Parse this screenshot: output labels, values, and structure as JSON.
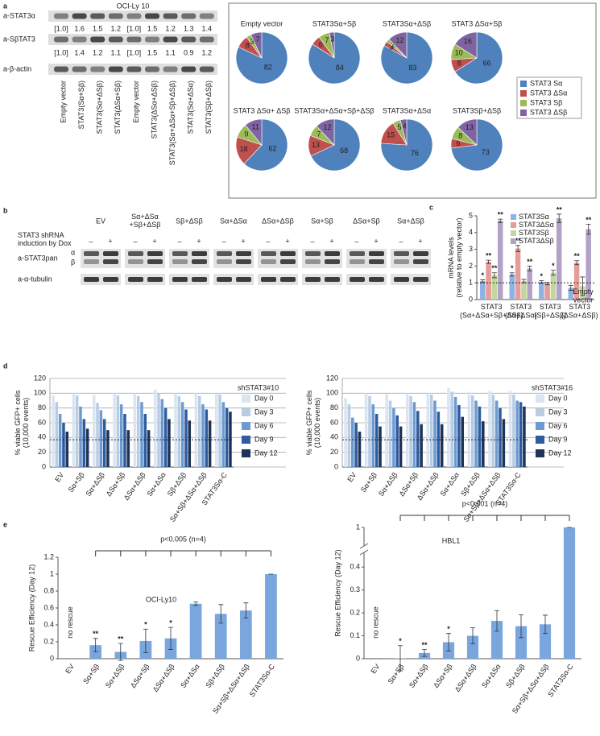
{
  "panel_labels": [
    "a",
    "b",
    "c",
    "d",
    "e"
  ],
  "blot_a": {
    "title": "OCI-Ly 10",
    "rows": [
      "a-STAT3α",
      "a-SβTAT3",
      "a-β-actin"
    ],
    "quant": [
      [
        "[1.0]",
        "1.6",
        "1.5",
        "1.2",
        "[1.0]",
        "1.5",
        "1.2",
        "1.3",
        "1.4"
      ],
      [
        "[1.0]",
        "1.4",
        "1.2",
        "1.1",
        "[1.0]",
        "1.5",
        "1.1",
        "0.9",
        "1.2"
      ]
    ],
    "lanes": [
      "Empty  vector",
      "STAT3(Sα+Sβ)",
      "STAT3(Sα+ΔSβ)",
      "STAT3(ΔSα+Sβ)",
      "Empty  vector",
      "STAT3(ΔSα+ΔSβ)",
      "STAT3(Sα+ΔSα+Sβ+ΔSβ)",
      "STAT3(Sα+ΔSα)",
      "STAT3(Sβ+ΔSβ)"
    ]
  },
  "blot_b": {
    "condition": "STAT3 shRNA\ninduction by Dox",
    "groups": [
      "EV",
      "Sα+ΔSα\n+Sβ+ΔSβ",
      "Sβ+ΔSβ",
      "Sα+ΔSα",
      "ΔSα+ΔSβ",
      "Sα+Sβ",
      "ΔSα+Sβ",
      "Sα+ΔSβ"
    ],
    "dox": [
      "–",
      "+"
    ],
    "rows": [
      "a-STAT3pan",
      "α",
      "β",
      "a-α-tubulin"
    ]
  },
  "chart_data": [
    {
      "type": "pie",
      "categories": [
        "STAT3 Sα",
        "STAT3 ΔSα",
        "STAT3 Sβ",
        "STAT3 ΔSβ"
      ],
      "colors": [
        "#4f81bd",
        "#c0504d",
        "#9bbb59",
        "#8064a2"
      ],
      "pies": [
        {
          "title": "Empty vector",
          "values": [
            82,
            8,
            3,
            7
          ]
        },
        {
          "title": "STAT3Sα+Sβ",
          "values": [
            84,
            6,
            7,
            3
          ]
        },
        {
          "title": "STAT3Sα+ΔSβ",
          "values": [
            83,
            3,
            2,
            12
          ]
        },
        {
          "title": "STAT3 ΔSα+Sβ",
          "values": [
            66,
            8,
            10,
            16
          ]
        },
        {
          "title": "STAT3 ΔSα+ ΔSβ",
          "values": [
            62,
            18,
            9,
            11
          ]
        },
        {
          "title": "STAT3Sα+ΔSα+Sβ+ΔSβ",
          "values": [
            68,
            13,
            7,
            12
          ]
        },
        {
          "title": "STAT3Sα+ΔSα",
          "values": [
            76,
            15,
            5,
            4
          ]
        },
        {
          "title": "STAT3Sβ+ΔSβ",
          "values": [
            73,
            6,
            8,
            13
          ]
        }
      ]
    },
    {
      "type": "bar",
      "ylabel": "mRNA levels\n(relative to empty vector)",
      "categories": [
        "STAT3\n(Sα+ΔSα+Sβ+ΔSβ)",
        "STAT3\n(Sα+ΔSα)",
        "STAT3\n(Sβ+ΔSβ)",
        "STAT3\n(ΔSα+ΔSβ)"
      ],
      "series": [
        {
          "name": "STAT3Sα",
          "color": "#8db3e2",
          "values": [
            1.1,
            1.5,
            1.05,
            0.7
          ],
          "errors": [
            0.08,
            0.1,
            0.08,
            0.15
          ],
          "stars": [
            "*",
            "*",
            "*",
            null
          ]
        },
        {
          "name": "STAT3ΔSα",
          "color": "#e69c97",
          "values": [
            2.25,
            3.05,
            0.95,
            2.2
          ],
          "errors": [
            0.1,
            0.18,
            0.07,
            0.12
          ],
          "stars": [
            "**",
            "**",
            null,
            "**"
          ]
        },
        {
          "name": "STAT3Sβ",
          "color": "#c3d69b",
          "values": [
            1.45,
            1.1,
            1.6,
            0.8
          ],
          "errors": [
            0.15,
            0.1,
            0.15,
            0.55
          ],
          "stars": [
            "**",
            null,
            "*",
            null
          ]
        },
        {
          "name": "STAT3ΔSβ",
          "color": "#b3a2c7",
          "values": [
            4.7,
            1.85,
            4.85,
            4.2
          ],
          "errors": [
            0.1,
            0.15,
            0.25,
            0.3
          ],
          "stars": [
            "**",
            "**",
            "**",
            "**"
          ]
        }
      ],
      "ylim": [
        0,
        5
      ],
      "yticks": [
        0,
        1,
        2,
        3,
        4,
        5
      ],
      "grid": false,
      "legend": "top-left",
      "ref_line": {
        "value": 1,
        "label": "Empty\nvector"
      }
    },
    {
      "type": "bar",
      "title": "shSTAT3#10",
      "ylabel": "% viable GFP+ cells\n(10,000 events)",
      "categories": [
        "EV",
        "Sα+Sβ",
        "Sα+ΔSβ",
        "ΔSα+Sβ",
        "ΔSα+ΔSβ",
        "Sα+ΔSα",
        "Sβ+ΔSβ",
        "Sα+Sβ+ΔSα+ΔSβ",
        "STAT3Sα-C"
      ],
      "series": [
        {
          "name": "Day 0",
          "color": "#dbe5f1",
          "values": [
            97,
            100,
            98,
            100,
            100,
            105,
            100,
            100,
            100
          ]
        },
        {
          "name": "Day 3",
          "color": "#b8cce4",
          "values": [
            88,
            97,
            87,
            97,
            96,
            100,
            96,
            96,
            98
          ]
        },
        {
          "name": "Day 6",
          "color": "#6d9bd1",
          "values": [
            72,
            82,
            77,
            85,
            88,
            92,
            88,
            85,
            88
          ]
        },
        {
          "name": "Day 9",
          "color": "#2e5c9e",
          "values": [
            60,
            65,
            65,
            72,
            72,
            80,
            78,
            78,
            80
          ]
        },
        {
          "name": "Day 12",
          "color": "#1d3358",
          "values": [
            48,
            52,
            50,
            50,
            50,
            65,
            63,
            63,
            75
          ]
        }
      ],
      "ylim": [
        0,
        120
      ],
      "yticks": [
        0,
        20,
        40,
        60,
        80,
        100,
        120
      ],
      "grid": true,
      "legend": "right",
      "ref_line": {
        "value": 37
      },
      "highlight_index": 8,
      "highlight_color": "#c0392b"
    },
    {
      "type": "bar",
      "title": "shSTAT3#16",
      "ylabel": "% viable GFP+ cells\n(10,000 events)",
      "categories": [
        "EV",
        "Sα+Sβ",
        "Sα+ΔSβ",
        "ΔSα+Sβ",
        "ΔSα+ΔSβ",
        "Sα+ΔSα",
        "Sβ+ΔSβ",
        "Sα+Sβ+ΔSα+ΔSβ",
        "STAT3Sα-C"
      ],
      "series": [
        {
          "name": "Day 0",
          "color": "#dbe5f1",
          "values": [
            93,
            100,
            99,
            100,
            100,
            107,
            102,
            103,
            103
          ]
        },
        {
          "name": "Day 3",
          "color": "#b8cce4",
          "values": [
            85,
            96,
            90,
            96,
            98,
            102,
            97,
            98,
            98
          ]
        },
        {
          "name": "Day 6",
          "color": "#6d9bd1",
          "values": [
            67,
            85,
            80,
            88,
            90,
            95,
            90,
            90,
            90
          ]
        },
        {
          "name": "Day 9",
          "color": "#2e5c9e",
          "values": [
            60,
            72,
            70,
            76,
            75,
            84,
            82,
            80,
            88
          ]
        },
        {
          "name": "Day 12",
          "color": "#1d3358",
          "values": [
            48,
            55,
            55,
            58,
            58,
            68,
            62,
            65,
            82
          ]
        }
      ],
      "ylim": [
        0,
        120
      ],
      "yticks": [
        0,
        20,
        40,
        60,
        80,
        100,
        120
      ],
      "grid": true,
      "legend": "right",
      "ref_line": {
        "value": 37
      },
      "highlight_index": 8,
      "highlight_color": "#c0392b"
    },
    {
      "type": "bar",
      "title": "OCI-Ly10",
      "ylabel": "Rescue Efficiency (Day 12)",
      "categories": [
        "EV",
        "Sα+Sβ",
        "Sα+ΔSβ",
        "ΔSα+Sβ",
        "ΔSα+ΔSβ",
        "Sα+ΔSα",
        "Sβ+ΔSβ",
        "Sα+Sβ+ΔSα+ΔSβ",
        "STAT3Sα-C"
      ],
      "values": [
        null,
        0.16,
        0.08,
        0.21,
        0.24,
        0.65,
        0.53,
        0.57,
        1.0
      ],
      "errors": [
        null,
        0.08,
        0.1,
        0.14,
        0.13,
        0.02,
        0.11,
        0.09,
        0
      ],
      "stars": [
        null,
        "**",
        "**",
        "*",
        "*",
        null,
        null,
        null,
        null
      ],
      "null_label": "no rescue",
      "color": "#7aa6de",
      "ylim": [
        0,
        1.2
      ],
      "yticks": [
        0,
        0.2,
        0.4,
        0.6,
        0.8,
        1,
        1.2
      ],
      "grid": false,
      "bracket": {
        "text": "p<0.005 (n=4)",
        "from": 1,
        "to": 8
      },
      "highlight_index": 8,
      "highlight_color": "#c0392b"
    },
    {
      "type": "bar",
      "title": "HBL1",
      "ylabel": "Rescue Efficiency (Day 12)",
      "categories": [
        "EV",
        "Sα+Sβ",
        "Sα+ΔSβ",
        "ΔSα+Sβ",
        "ΔSα+ΔSβ",
        "Sα+ΔSα",
        "Sβ+ΔSβ",
        "Sα+Sβ+ΔSα+ΔSβ",
        "STAT3Sα-C"
      ],
      "values": [
        null,
        0.002,
        0.025,
        0.072,
        0.1,
        0.165,
        0.142,
        0.15,
        1
      ],
      "errors": [
        null,
        0.055,
        0.015,
        0.038,
        0.035,
        0.045,
        0.05,
        0.04,
        0
      ],
      "stars": [
        null,
        "*",
        "**",
        "*",
        null,
        null,
        null,
        null,
        null
      ],
      "null_label": "no rescue",
      "color": "#7aa6de",
      "ylim": [
        0,
        1
      ],
      "ybreak": [
        0.45,
        0.95
      ],
      "yticks": [
        0,
        0.1,
        0.2,
        0.3,
        0.4,
        1
      ],
      "grid": false,
      "bracket": {
        "text": "p<0.001 (n=4)",
        "from": 1,
        "to": 8
      },
      "highlight_index": 8,
      "highlight_color": "#c0392b"
    }
  ]
}
